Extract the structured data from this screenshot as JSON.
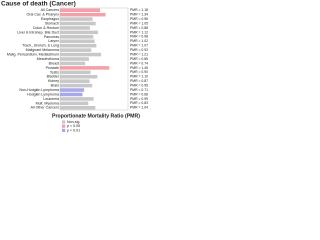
{
  "chart_data": {
    "type": "hbar",
    "title": "Cause of death (Cancer)",
    "xlabel": "Proportionate Mortality Ratio (PMR)",
    "categories": [
      "All Cancers",
      "Oral Cav. & Pharynx",
      "Esophagus",
      "Stomach",
      "Colon & Rectum",
      "Liver & Intrahep. Bile Duct",
      "Pancreas",
      "Larynx",
      "Trach., Bronch. & Lung",
      "Malignant Melanoma",
      "Malig. Pericardium, Mediastinum",
      "Mesothelioma",
      "Breast",
      "Prostate",
      "Testis",
      "Bladder",
      "Kidney",
      "Brain",
      "Non-Hodgkin Lymphoma",
      "Hodgkin Lymphoma",
      "Leukemia",
      "Mult. Myeloma",
      "All Other Cancers"
    ],
    "values": [
      1.18,
      1.34,
      0.96,
      1.05,
      0.88,
      1.12,
      0.98,
      1.02,
      1.07,
      0.92,
      1.21,
      0.85,
      0.74,
      1.45,
      0.9,
      1.1,
      0.87,
      0.95,
      0.71,
      0.66,
      0.99,
      0.83,
      1.04
    ],
    "value_labels": [
      "PMR = 1.18",
      "PMR = 1.34",
      "PMR = 0.96",
      "PMR = 1.05",
      "PMR = 0.88",
      "PMR = 1.12",
      "PMR = 0.98",
      "PMR = 1.02",
      "PMR = 1.07",
      "PMR = 0.92",
      "PMR = 1.21",
      "PMR = 0.85",
      "PMR = 0.74",
      "PMR = 1.45",
      "PMR = 0.90",
      "PMR = 1.10",
      "PMR = 0.87",
      "PMR = 0.95",
      "PMR = 0.71",
      "PMR = 0.66",
      "PMR = 0.99",
      "PMR = 0.83",
      "PMR = 1.04"
    ],
    "colors": [
      "#f4a0a8",
      "#f4a0a8",
      "#c8c8c8",
      "#c8c8c8",
      "#c8c8c8",
      "#c8c8c8",
      "#c8c8c8",
      "#c8c8c8",
      "#c8c8c8",
      "#c8c8c8",
      "#c8c8c8",
      "#c8c8c8",
      "#c8c8c8",
      "#f4a0a8",
      "#c8c8c8",
      "#c8c8c8",
      "#c8c8c8",
      "#c8c8c8",
      "#a8a8e8",
      "#a8a8e8",
      "#c8c8c8",
      "#c8c8c8",
      "#c8c8c8"
    ],
    "xlim": [
      0,
      2
    ],
    "legend": [
      {
        "label": "Non-sig.",
        "color": "#c8c8c8"
      },
      {
        "label": "p < 0.05",
        "color": "#f4a0a8"
      },
      {
        "label": "p < 0.01",
        "color": "#a8a8e8"
      }
    ]
  }
}
